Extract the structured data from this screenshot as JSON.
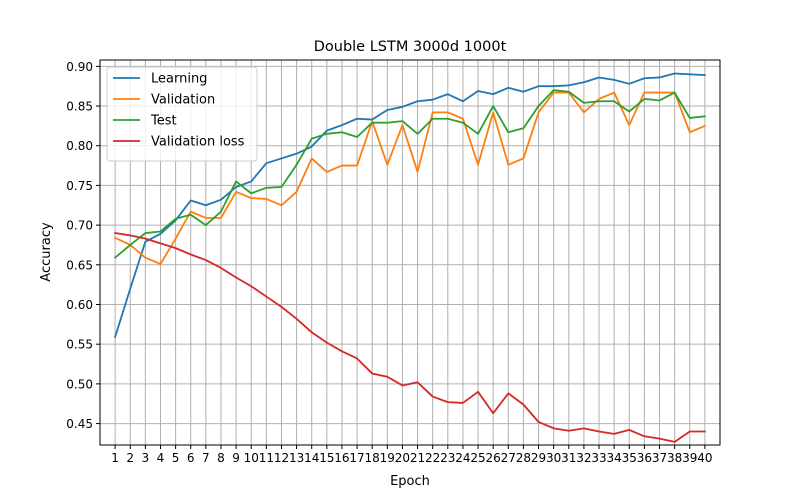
{
  "chart_data": {
    "type": "line",
    "title": "Double LSTM 3000d 1000t",
    "xlabel": "Epoch",
    "ylabel": "Accuracy",
    "x": [
      1,
      2,
      3,
      4,
      5,
      6,
      7,
      8,
      9,
      10,
      11,
      12,
      13,
      14,
      15,
      16,
      17,
      18,
      19,
      20,
      21,
      22,
      23,
      24,
      25,
      26,
      27,
      28,
      29,
      30,
      31,
      32,
      33,
      34,
      35,
      36,
      37,
      38,
      39,
      40
    ],
    "xlim": [
      0.0,
      41.0
    ],
    "ylim": [
      0.423,
      0.908
    ],
    "yticks": [
      0.45,
      0.5,
      0.55,
      0.6,
      0.65,
      0.7,
      0.75,
      0.8,
      0.85,
      0.9
    ],
    "ytick_labels": [
      "0.45",
      "0.50",
      "0.55",
      "0.60",
      "0.65",
      "0.70",
      "0.75",
      "0.80",
      "0.85",
      "0.90"
    ],
    "grid": true,
    "legend_position": "top-left",
    "series": [
      {
        "name": "Learning",
        "color": "#1f77b4",
        "values": [
          0.559,
          0.62,
          0.679,
          0.689,
          0.706,
          0.731,
          0.725,
          0.732,
          0.748,
          0.755,
          0.778,
          0.784,
          0.79,
          0.799,
          0.819,
          0.826,
          0.834,
          0.833,
          0.845,
          0.849,
          0.856,
          0.858,
          0.865,
          0.856,
          0.869,
          0.865,
          0.873,
          0.868,
          0.875,
          0.875,
          0.876,
          0.88,
          0.886,
          0.883,
          0.878,
          0.885,
          0.886,
          0.891,
          0.89,
          0.889
        ]
      },
      {
        "name": "Validation",
        "color": "#ff7f0e",
        "values": [
          0.684,
          0.675,
          0.659,
          0.651,
          0.683,
          0.717,
          0.709,
          0.709,
          0.742,
          0.734,
          0.733,
          0.725,
          0.742,
          0.784,
          0.767,
          0.775,
          0.775,
          0.831,
          0.776,
          0.826,
          0.767,
          0.842,
          0.842,
          0.834,
          0.776,
          0.842,
          0.776,
          0.784,
          0.842,
          0.867,
          0.867,
          0.842,
          0.859,
          0.867,
          0.826,
          0.867,
          0.867,
          0.867,
          0.817,
          0.825
        ]
      },
      {
        "name": "Test",
        "color": "#2ca02c",
        "values": [
          0.659,
          0.675,
          0.69,
          0.692,
          0.708,
          0.713,
          0.7,
          0.717,
          0.755,
          0.74,
          0.747,
          0.748,
          0.776,
          0.809,
          0.815,
          0.817,
          0.811,
          0.829,
          0.829,
          0.831,
          0.815,
          0.834,
          0.834,
          0.829,
          0.815,
          0.85,
          0.817,
          0.822,
          0.85,
          0.87,
          0.868,
          0.854,
          0.856,
          0.856,
          0.843,
          0.859,
          0.857,
          0.867,
          0.835,
          0.837
        ]
      },
      {
        "name": "Validation loss",
        "color": "#d62728",
        "values": [
          0.69,
          0.687,
          0.683,
          0.677,
          0.671,
          0.663,
          0.656,
          0.646,
          0.634,
          0.623,
          0.61,
          0.597,
          0.582,
          0.565,
          0.552,
          0.541,
          0.532,
          0.513,
          0.509,
          0.498,
          0.502,
          0.484,
          0.477,
          0.476,
          0.49,
          0.463,
          0.488,
          0.474,
          0.452,
          0.444,
          0.441,
          0.444,
          0.44,
          0.437,
          0.442,
          0.434,
          0.431,
          0.427,
          0.44,
          0.44
        ]
      }
    ]
  }
}
